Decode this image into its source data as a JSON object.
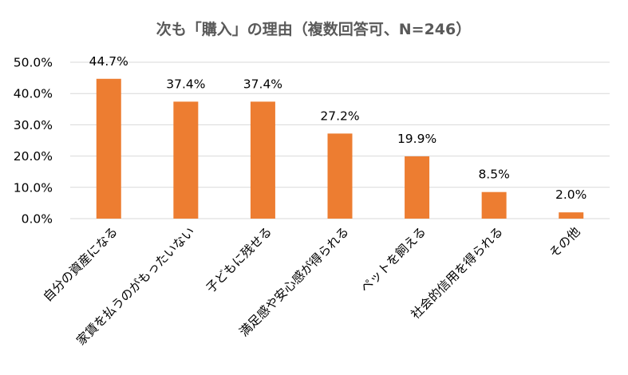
{
  "chart_data": {
    "type": "bar",
    "title": "次も「購入」の理由（複数回答可、N=246）",
    "categories": [
      "自分の資産になる",
      "家賃を払うのがもったいない",
      "子どもに残せる",
      "満足感や安心感が得られる",
      "ペットを飼える",
      "社会的信用を得られる",
      "その他"
    ],
    "values": [
      44.7,
      37.4,
      37.4,
      27.2,
      19.9,
      8.5,
      2.0
    ],
    "data_labels": [
      "44.7%",
      "37.4%",
      "37.4%",
      "27.2%",
      "19.9%",
      "8.5%",
      "2.0%"
    ],
    "yticks": [
      "0.0%",
      "10.0%",
      "20.0%",
      "30.0%",
      "40.0%",
      "50.0%"
    ],
    "ylim": [
      0,
      50
    ],
    "xlabel": "",
    "ylabel": "",
    "grid": true,
    "legend": "none",
    "colors": {
      "bar": "#ED7D31",
      "grid": "#D9D9D9",
      "title": "#595959"
    }
  }
}
